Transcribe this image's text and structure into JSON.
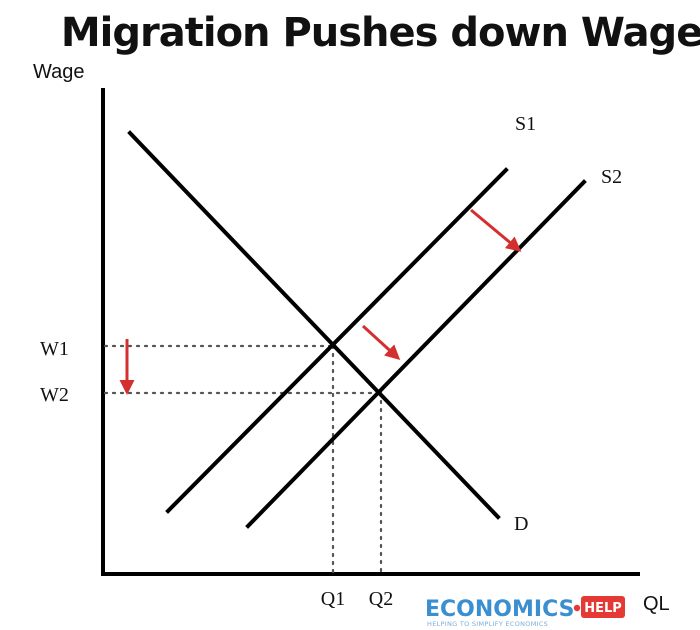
{
  "title": "Migration Pushes down Wages",
  "axes": {
    "y_label": "Wage",
    "x_label": "QL"
  },
  "curves": {
    "s1": "S1",
    "s2": "S2",
    "d": "D"
  },
  "levels": {
    "w1": "W1",
    "w2": "W2",
    "q1": "Q1",
    "q2": "Q2"
  },
  "brand": {
    "name": "ECONOMICS",
    "badge": "HELP",
    "tagline": "HELPING TO SIMPLIFY ECONOMICS"
  },
  "colors": {
    "arrow": "#d32f2f",
    "brand": "#3a8fd1",
    "badge": "#e53935"
  }
}
